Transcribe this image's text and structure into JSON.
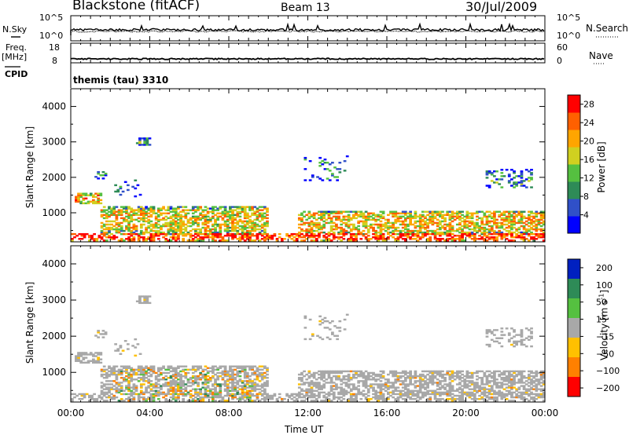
{
  "header": {
    "station": "Blackstone (fitACF)",
    "beam": "Beam 13",
    "date": "30/Jul/2009"
  },
  "left_labels": {
    "nsky": "N.Sky",
    "freq": "Freq.",
    "freq_unit": "[MHz]",
    "cpid": "CPID"
  },
  "right_labels": {
    "nsearch": "N.Search",
    "nave": "Nave"
  },
  "cpid_text": "themis (tau) 3310",
  "chart_data": [
    {
      "type": "line",
      "name": "noise-panel",
      "left_axis": {
        "label": "N.Sky",
        "ticks": [
          "10^5",
          "10^0"
        ]
      },
      "right_axis": {
        "label": "N.Search",
        "ticks": [
          "10^5",
          "10^0"
        ]
      },
      "x_range_hours": [
        0,
        24
      ]
    },
    {
      "type": "line",
      "name": "frequency-panel",
      "left_axis": {
        "label": "Freq. [MHz]",
        "ticks": [
          18,
          8
        ],
        "range": [
          8,
          18
        ]
      },
      "right_axis": {
        "label": "Nave",
        "ticks": [
          60,
          0
        ],
        "range": [
          0,
          60
        ]
      },
      "x_range_hours": [
        0,
        24
      ],
      "frequency_level_MHz": 10
    },
    {
      "type": "heatmap",
      "name": "power-panel",
      "ylabel": "Slant Range [km]",
      "ylim": [
        180,
        4500
      ],
      "y_ticks": [
        1000,
        2000,
        3000,
        4000
      ],
      "x_range_hours": [
        0,
        24
      ],
      "colorbar": {
        "label": "Power [dB]",
        "ticks": [
          4,
          8,
          12,
          16,
          20,
          24,
          28
        ],
        "range": [
          0,
          30
        ],
        "colors": [
          "#0000ff",
          "#3050c8",
          "#2e8b57",
          "#55c040",
          "#d0d020",
          "#ffa500",
          "#ff6000",
          "#ff0000"
        ]
      }
    },
    {
      "type": "heatmap",
      "name": "velocity-panel",
      "ylabel": "Slant Range [km]",
      "ylim": [
        180,
        4500
      ],
      "y_ticks": [
        1000,
        2000,
        3000,
        4000
      ],
      "x_range_hours": [
        0,
        24
      ],
      "xlabel": "Time UT",
      "x_ticks": [
        "00:00",
        "04:00",
        "08:00",
        "12:00",
        "16:00",
        "20:00",
        "00:00"
      ],
      "colorbar": {
        "label": "Velocity [m s^-1]",
        "ticks": [
          "200",
          "100",
          "50",
          "15",
          "-15",
          "-50",
          "-100",
          "-200"
        ],
        "colors": [
          "#0020c0",
          "#2e8b57",
          "#55c040",
          "#a8a8a8",
          "#ffc000",
          "#ff8000",
          "#ff0000"
        ]
      }
    }
  ]
}
